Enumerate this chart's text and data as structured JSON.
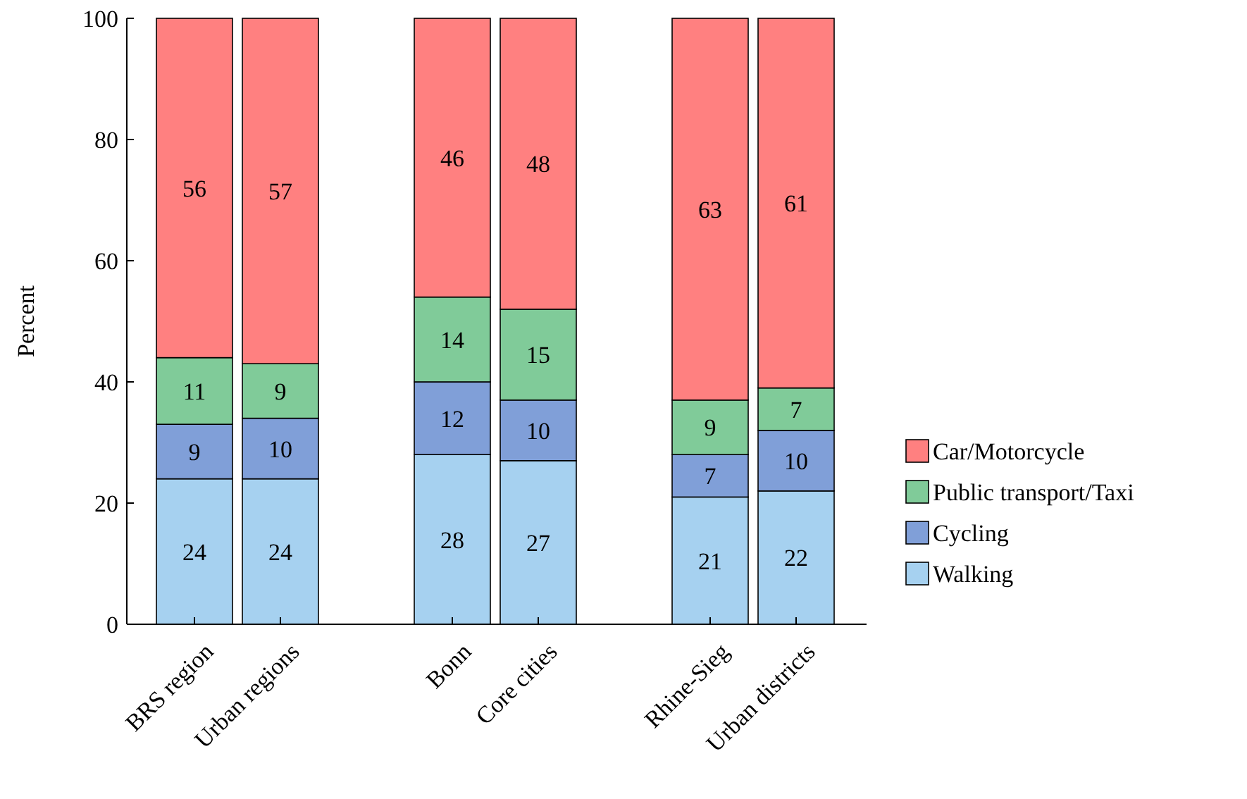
{
  "chart_data": {
    "type": "bar",
    "stacked": true,
    "ylabel": "Percent",
    "categories": [
      "BRS region",
      "Urban regions",
      null,
      "Bonn",
      "Core cities",
      null,
      "Rhine-Sieg",
      "Urban districts"
    ],
    "series": [
      {
        "name": "Walking",
        "color": "#a6d1f0",
        "values": [
          24,
          24,
          null,
          28,
          27,
          null,
          21,
          22
        ]
      },
      {
        "name": "Cycling",
        "color": "#809fd8",
        "values": [
          9,
          10,
          null,
          12,
          10,
          null,
          7,
          10
        ]
      },
      {
        "name": "Public transport/Taxi",
        "color": "#80cb99",
        "values": [
          11,
          9,
          null,
          14,
          15,
          null,
          9,
          7
        ]
      },
      {
        "name": "Car/Motorcycle",
        "color": "#ff8080",
        "values": [
          56,
          57,
          null,
          46,
          48,
          null,
          63,
          61
        ]
      }
    ],
    "ylim": [
      0,
      100
    ],
    "yticks": [
      0,
      20,
      40,
      60,
      80,
      100
    ],
    "data_labels": true,
    "legend": "right",
    "grid": false
  }
}
